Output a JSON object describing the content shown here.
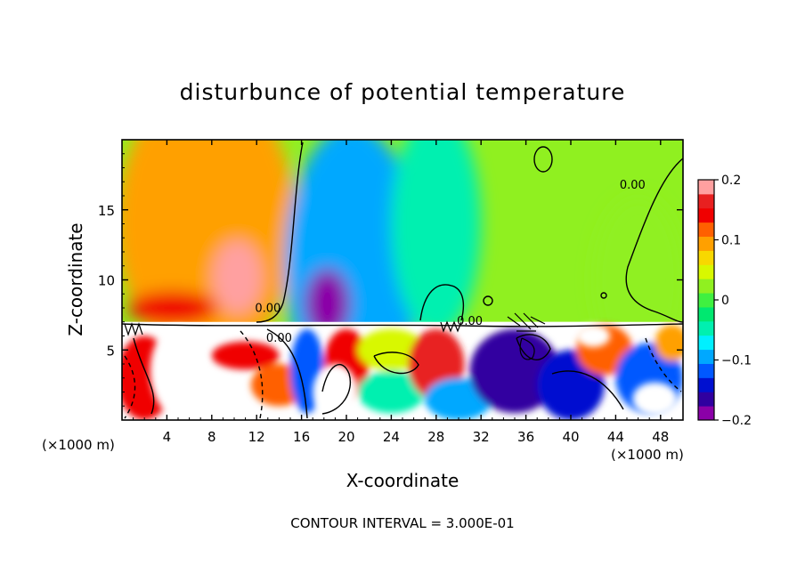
{
  "chart_data": {
    "type": "heatmap",
    "title": "disturbunce of potential temperature",
    "xlabel": "X-coordinate",
    "ylabel": "Z-coordinate",
    "x_unit": "(×1000 m)",
    "footer": "CONTOUR INTERVAL = 3.000E-01",
    "xlim": [
      0,
      50
    ],
    "ylim": [
      0,
      20
    ],
    "x_ticks": [
      4,
      8,
      12,
      16,
      20,
      24,
      28,
      32,
      36,
      40,
      44,
      48
    ],
    "y_ticks": [
      5,
      10,
      15
    ],
    "colorbar": {
      "range": [
        -0.2,
        0.2
      ],
      "tick_values": [
        0.2,
        0.1,
        0,
        -0.1,
        -0.2
      ],
      "tick_labels": [
        "0.2",
        "0.1",
        "0",
        "−0.1",
        "−0.2"
      ],
      "colors": [
        "#8b00a8",
        "#3000a0",
        "#0010d0",
        "#0058ff",
        "#00a8ff",
        "#00f0ff",
        "#00f0b0",
        "#00e870",
        "#40f040",
        "#90f020",
        "#d8f800",
        "#f8d800",
        "#ffa000",
        "#ff6000",
        "#f00000",
        "#e82020",
        "#ffa0a0"
      ]
    },
    "contour_labels": [
      {
        "x": 13,
        "z": 7.7,
        "text": "0.00"
      },
      {
        "x": 14,
        "z": 5.6,
        "text": "0.00"
      },
      {
        "x": 31,
        "z": 6.8,
        "text": "0.00"
      },
      {
        "x": 45.5,
        "z": 16.5,
        "text": "0.00"
      }
    ],
    "upper_fields": [
      {
        "x": 7.5,
        "z": 14,
        "rx": 8,
        "rz": 10,
        "value": 0.09
      },
      {
        "x": 10.3,
        "z": 10.2,
        "rx": 2.2,
        "rz": 2.6,
        "value": 0.18
      },
      {
        "x": 4.5,
        "z": 8,
        "rx": 4,
        "rz": 1.2,
        "value": 0.14
      },
      {
        "x": 20.5,
        "z": 11,
        "rx": 6,
        "rz": 10,
        "value": -0.1
      },
      {
        "x": 18.3,
        "z": 8.3,
        "rx": 2,
        "rz": 2.5,
        "value": -0.19
      },
      {
        "x": 28,
        "z": 14,
        "rx": 4,
        "rz": 8,
        "value": -0.04
      },
      {
        "x": 46,
        "z": 10,
        "rx": 4,
        "rz": 6,
        "value": 0.02
      }
    ],
    "lower_fields": [
      {
        "x": 2,
        "z": 3,
        "rx": 2.5,
        "rz": 3,
        "value": 0.15
      },
      {
        "x": 11,
        "z": 4.6,
        "rx": 3,
        "rz": 1,
        "value": 0.14
      },
      {
        "x": 14,
        "z": 2.5,
        "rx": 2.5,
        "rz": 1.5,
        "value": 0.12
      },
      {
        "x": 16.5,
        "z": 3.5,
        "rx": 1.5,
        "rz": 3,
        "value": -0.12
      },
      {
        "x": 20,
        "z": 4,
        "rx": 2,
        "rz": 2.5,
        "value": 0.14
      },
      {
        "x": 24,
        "z": 5,
        "rx": 3,
        "rz": 1.5,
        "value": 0.05
      },
      {
        "x": 24,
        "z": 2,
        "rx": 3,
        "rz": 1.5,
        "value": -0.05
      },
      {
        "x": 28,
        "z": 4,
        "rx": 2.5,
        "rz": 2.5,
        "value": 0.16
      },
      {
        "x": 30,
        "z": 1.5,
        "rx": 3,
        "rz": 1.5,
        "value": -0.1
      },
      {
        "x": 35,
        "z": 3.5,
        "rx": 4,
        "rz": 3,
        "value": -0.16
      },
      {
        "x": 40,
        "z": 2.5,
        "rx": 3,
        "rz": 2.5,
        "value": -0.14
      },
      {
        "x": 43,
        "z": 5,
        "rx": 2.5,
        "rz": 1.8,
        "value": 0.12
      },
      {
        "x": 47,
        "z": 3,
        "rx": 3,
        "rz": 2.5,
        "value": -0.12
      },
      {
        "x": 49,
        "z": 5.5,
        "rx": 1.5,
        "rz": 1.3,
        "value": 0.1
      }
    ],
    "white_patches": [
      {
        "x": 5,
        "z": 3.5,
        "rx": 2.5,
        "rz": 3.2
      },
      {
        "x": 19,
        "z": 2,
        "rx": 2,
        "rz": 2
      },
      {
        "x": 47.5,
        "z": 1.5,
        "rx": 2,
        "rz": 1.2
      },
      {
        "x": 42,
        "z": 6,
        "rx": 1.5,
        "rz": 0.8
      }
    ]
  }
}
